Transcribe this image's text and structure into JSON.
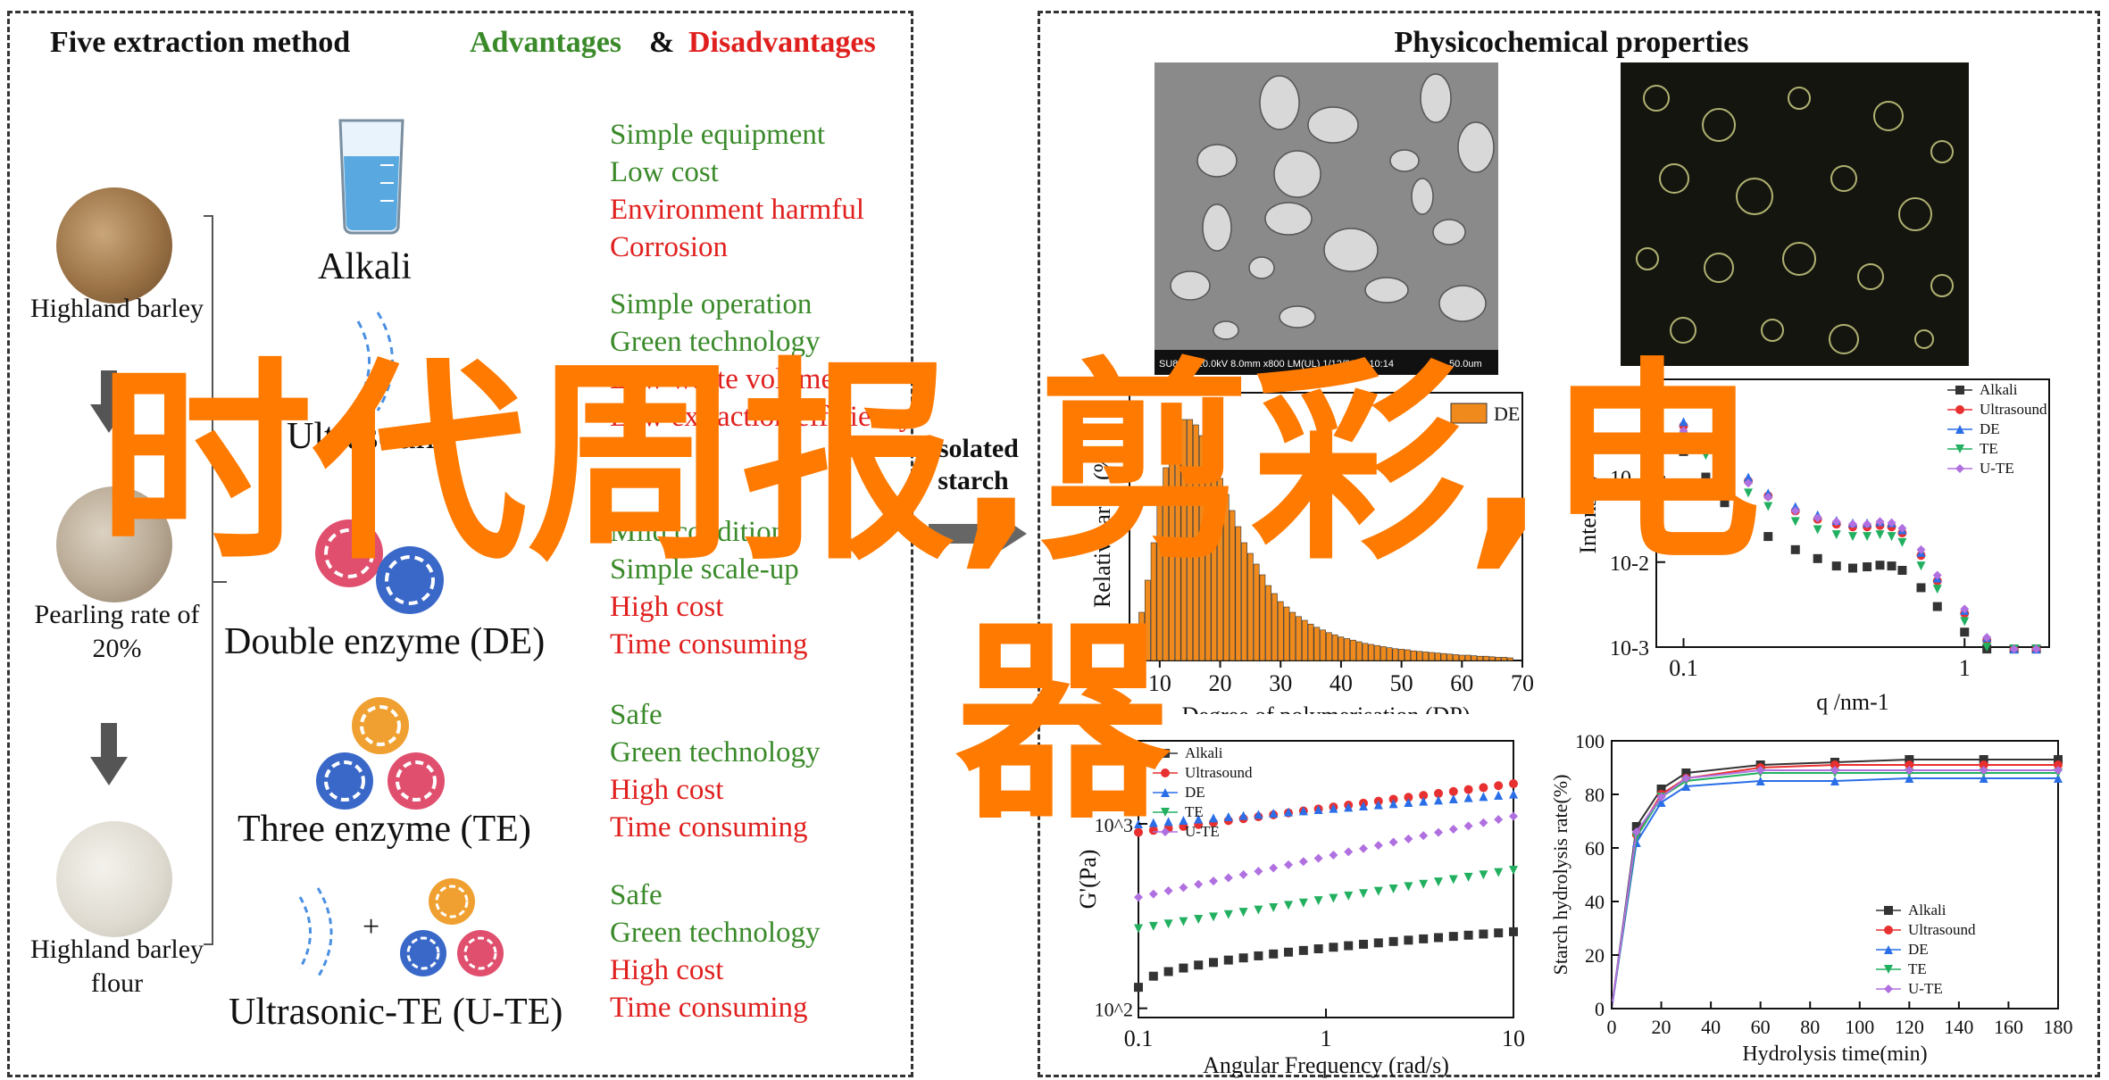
{
  "left": {
    "title": "Five extraction method",
    "adv_label": "Advantages",
    "amp": "&",
    "disadv_label": "Disadvantages",
    "samples": [
      {
        "label": "Highland barley"
      },
      {
        "label": "Pearling rate of 20%"
      },
      {
        "label": "Highland barley flour"
      }
    ],
    "methods": [
      {
        "name": "Alkali",
        "advantages": [
          "Simple equipment",
          "Low cost"
        ],
        "disadvantages": [
          "Environment harmful",
          "Corrosion"
        ]
      },
      {
        "name": "Ultrasound",
        "advantages": [
          "Simple operation",
          "Green technology"
        ],
        "disadvantages": [
          "Low waste volume",
          "Low extraction efficiency"
        ]
      },
      {
        "name": "Double enzyme (DE)",
        "advantages": [
          "Mild conditions",
          "Simple scale-up"
        ],
        "disadvantages": [
          "High cost",
          "Time consuming"
        ]
      },
      {
        "name": "Three enzyme (TE)",
        "advantages": [
          "Safe",
          "Green technology"
        ],
        "disadvantages": [
          "High cost",
          "Time consuming"
        ]
      },
      {
        "name": "Ultrasonic-TE (U-TE)",
        "advantages": [
          "Safe",
          "Green technology"
        ],
        "disadvantages": [
          "High cost",
          "Time consuming"
        ]
      }
    ],
    "plus": "+"
  },
  "middle": {
    "arrow_label_1": "Isolated",
    "arrow_label_2": "starch"
  },
  "right": {
    "title": "Physicochemical properties",
    "sem_caption": "SU8010 10.0kV 8.0mm x800 LM(UL) 1/12/2022 10:14",
    "sem_scale": "50.0um"
  },
  "watermark": {
    "line1": "时代周报,剪彩,电",
    "line2": "器"
  },
  "colors": {
    "green": "#3a8a2a",
    "red": "#e0201e",
    "orange_bar": "#f08a1c",
    "watermark": "#ff7a00",
    "alkali": "#333333",
    "ultrasound": "#e83030",
    "de": "#2a6ee8",
    "te": "#22b060",
    "ute": "#b070e0"
  },
  "chart_data": [
    {
      "type": "bar",
      "title": "",
      "xlabel": "Degree of polymerisation (DP)",
      "ylabel": "Relative area (%)",
      "legend": [
        "DE"
      ],
      "xlim": [
        5,
        70
      ],
      "xticks": [
        10,
        20,
        30,
        40,
        50,
        60,
        70
      ],
      "x": [
        6,
        7,
        8,
        9,
        10,
        11,
        12,
        13,
        14,
        15,
        16,
        17,
        18,
        19,
        20,
        21,
        22,
        23,
        24,
        25,
        26,
        27,
        28,
        29,
        30,
        31,
        32,
        33,
        34,
        35,
        36,
        37,
        38,
        39,
        40,
        41,
        42,
        43,
        44,
        45,
        46,
        47,
        48,
        49,
        50,
        51,
        52,
        53,
        54,
        55,
        56,
        57,
        58,
        59,
        60,
        61,
        62,
        63,
        64,
        65,
        66,
        67,
        68
      ],
      "values": [
        0.3,
        0.9,
        1.5,
        2.2,
        3.0,
        3.6,
        4.1,
        4.4,
        4.5,
        4.5,
        4.4,
        4.2,
        4.0,
        3.7,
        3.4,
        3.1,
        2.8,
        2.5,
        2.2,
        2.0,
        1.8,
        1.6,
        1.4,
        1.25,
        1.1,
        1.0,
        0.9,
        0.82,
        0.75,
        0.68,
        0.62,
        0.57,
        0.52,
        0.48,
        0.44,
        0.41,
        0.38,
        0.35,
        0.32,
        0.3,
        0.28,
        0.26,
        0.24,
        0.22,
        0.21,
        0.2,
        0.18,
        0.17,
        0.16,
        0.15,
        0.14,
        0.13,
        0.12,
        0.11,
        0.1,
        0.1,
        0.09,
        0.08,
        0.08,
        0.07,
        0.06,
        0.06,
        0.05
      ]
    },
    {
      "type": "line",
      "title": "",
      "xlabel": "q /nm-1",
      "ylabel": "Intensity",
      "xscale": "log",
      "yscale": "log",
      "xticks": [
        "0.1",
        "1"
      ],
      "yticks": [
        "10-3",
        "10-2",
        "10-1",
        "10"
      ],
      "series": [
        {
          "name": "Alkali",
          "x": [
            0.1,
            0.12,
            0.14,
            0.17,
            0.2,
            0.25,
            0.3,
            0.35,
            0.4,
            0.45,
            0.5,
            0.55,
            0.6,
            0.7,
            0.8,
            1.0,
            1.2,
            1.5,
            1.8
          ],
          "y": [
            0.2,
            0.1,
            0.05,
            0.03,
            0.02,
            0.014,
            0.011,
            0.009,
            0.0085,
            0.0088,
            0.0092,
            0.009,
            0.008,
            0.005,
            0.003,
            0.0015,
            0.0009,
            0.0006,
            0.0005
          ]
        },
        {
          "name": "Ultrasound",
          "x": [
            0.1,
            0.12,
            0.14,
            0.17,
            0.2,
            0.25,
            0.3,
            0.35,
            0.4,
            0.45,
            0.5,
            0.55,
            0.6,
            0.7,
            0.8,
            1.0,
            1.2,
            1.5,
            1.8
          ],
          "y": [
            0.4,
            0.25,
            0.15,
            0.09,
            0.06,
            0.04,
            0.032,
            0.028,
            0.026,
            0.026,
            0.027,
            0.026,
            0.022,
            0.012,
            0.006,
            0.0025,
            0.0012,
            0.0007,
            0.0005
          ]
        },
        {
          "name": "DE",
          "x": [
            0.1,
            0.12,
            0.14,
            0.17,
            0.2,
            0.25,
            0.3,
            0.35,
            0.4,
            0.45,
            0.5,
            0.55,
            0.6,
            0.7,
            0.8,
            1.0,
            1.2,
            1.5,
            1.8
          ],
          "y": [
            0.45,
            0.28,
            0.17,
            0.1,
            0.065,
            0.045,
            0.036,
            0.031,
            0.029,
            0.029,
            0.03,
            0.029,
            0.024,
            0.013,
            0.0065,
            0.0027,
            0.0013,
            0.0007,
            0.0005
          ]
        },
        {
          "name": "TE",
          "x": [
            0.1,
            0.12,
            0.14,
            0.17,
            0.2,
            0.25,
            0.3,
            0.35,
            0.4,
            0.45,
            0.5,
            0.55,
            0.6,
            0.7,
            0.8,
            1.0,
            1.2,
            1.5,
            1.8
          ],
          "y": [
            0.3,
            0.18,
            0.11,
            0.065,
            0.045,
            0.03,
            0.024,
            0.021,
            0.02,
            0.02,
            0.021,
            0.02,
            0.017,
            0.009,
            0.0048,
            0.002,
            0.001,
            0.0006,
            0.0005
          ]
        },
        {
          "name": "U-TE",
          "x": [
            0.1,
            0.12,
            0.14,
            0.17,
            0.2,
            0.25,
            0.3,
            0.35,
            0.4,
            0.45,
            0.5,
            0.55,
            0.6,
            0.7,
            0.8,
            1.0,
            1.2,
            1.5,
            1.8
          ],
          "y": [
            0.35,
            0.22,
            0.14,
            0.085,
            0.058,
            0.04,
            0.033,
            0.03,
            0.028,
            0.028,
            0.03,
            0.029,
            0.025,
            0.014,
            0.007,
            0.0028,
            0.0013,
            0.0007,
            0.0005
          ]
        }
      ]
    },
    {
      "type": "scatter",
      "title": "",
      "xlabel": "Angular Frequency (rad/s)",
      "ylabel": "G'(Pa)",
      "xscale": "log",
      "yscale": "log",
      "xticks": [
        "0.1",
        "1",
        "10"
      ],
      "yticks": [
        "10^2",
        "10^3"
      ],
      "series": [
        {
          "name": "Alkali",
          "x": [
            0.1,
            10
          ],
          "y": [
            130,
            260
          ]
        },
        {
          "name": "Ultrasound",
          "x": [
            0.1,
            10
          ],
          "y": [
            900,
            1650
          ]
        },
        {
          "name": "DE",
          "x": [
            0.1,
            10
          ],
          "y": [
            1000,
            1450
          ]
        },
        {
          "name": "TE",
          "x": [
            0.1,
            10
          ],
          "y": [
            270,
            560
          ]
        },
        {
          "name": "U-TE",
          "x": [
            0.1,
            10
          ],
          "y": [
            400,
            1100
          ]
        }
      ]
    },
    {
      "type": "line",
      "title": "",
      "xlabel": "Hydrolysis time(min)",
      "ylabel": "Starch hydrolysis rate(%)",
      "xlim": [
        0,
        180
      ],
      "ylim": [
        0,
        100
      ],
      "xticks": [
        0,
        20,
        40,
        60,
        80,
        100,
        120,
        140,
        160,
        180
      ],
      "yticks": [
        0,
        20,
        40,
        60,
        80,
        100
      ],
      "series": [
        {
          "name": "Alkali",
          "x": [
            0,
            10,
            20,
            30,
            60,
            90,
            120,
            150,
            180
          ],
          "y": [
            0,
            68,
            82,
            88,
            91,
            92,
            93,
            93,
            93
          ]
        },
        {
          "name": "Ultrasound",
          "x": [
            0,
            10,
            20,
            30,
            60,
            90,
            120,
            150,
            180
          ],
          "y": [
            0,
            65,
            80,
            86,
            90,
            91,
            91,
            91,
            91
          ]
        },
        {
          "name": "DE",
          "x": [
            0,
            10,
            20,
            30,
            60,
            90,
            120,
            150,
            180
          ],
          "y": [
            0,
            62,
            77,
            83,
            85,
            85,
            86,
            86,
            86
          ]
        },
        {
          "name": "TE",
          "x": [
            0,
            10,
            20,
            30,
            60,
            90,
            120,
            150,
            180
          ],
          "y": [
            0,
            64,
            79,
            85,
            88,
            88,
            88,
            88,
            88
          ]
        },
        {
          "name": "U-TE",
          "x": [
            0,
            10,
            20,
            30,
            60,
            90,
            120,
            150,
            180
          ],
          "y": [
            0,
            66,
            79,
            86,
            89,
            89,
            89,
            89,
            89
          ]
        }
      ]
    }
  ]
}
